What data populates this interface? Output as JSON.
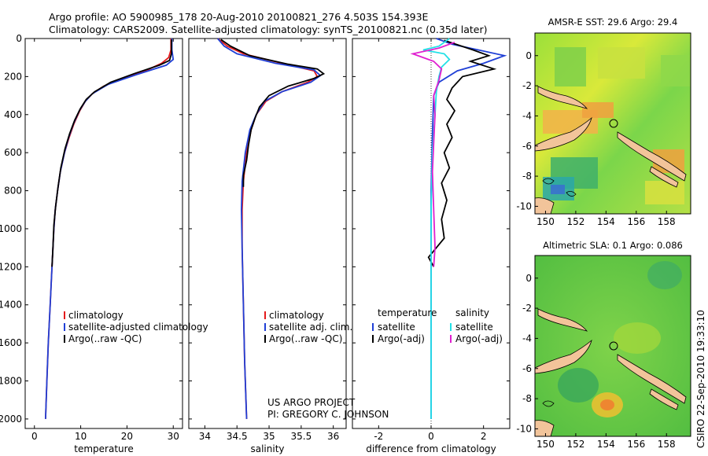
{
  "header": {
    "line1": "Argo profile: AO 5900985_178 20-Aug-2010 20100821_276 4.503S 154.393E",
    "line2": "Climatology: CARS2009. Satellite-adjusted climatology: synTS_20100821.nc (0.35d later)"
  },
  "credits": {
    "project": "US ARGO PROJECT",
    "pi": "PI: GREGORY C. JOHNSON",
    "stamp": "CSIRO 22-Sep-2010 19:33:10"
  },
  "colors": {
    "climatology": "#e41a1c",
    "satellite": "#1f3fd6",
    "argo": "#000000",
    "salinity_satellite": "#22e0e6",
    "salinity_argo": "#e020d0",
    "land": "#f2c49a"
  },
  "chart_data": [
    {
      "type": "line",
      "name": "temperature-profile",
      "xlabel": "temperature",
      "ylabel": "",
      "xlim": [
        -2,
        32
      ],
      "ylim": [
        2050,
        0
      ],
      "xticks": [
        "0",
        "10",
        "20",
        "30"
      ],
      "yticks": [
        "0",
        "200",
        "400",
        "600",
        "800",
        "1000",
        "1200",
        "1400",
        "1600",
        "1800",
        "2000"
      ],
      "legend": [
        "climatology",
        "satellite-adjusted climatology",
        "Argo(..raw -QC)"
      ],
      "series": [
        {
          "name": "climatology",
          "color": "#e41a1c",
          "points": [
            [
              29.5,
              0
            ],
            [
              29.5,
              60
            ],
            [
              29.0,
              100
            ],
            [
              27.5,
              130
            ],
            [
              24.0,
              170
            ],
            [
              19.0,
              210
            ],
            [
              15.0,
              250
            ],
            [
              12.5,
              290
            ],
            [
              11.0,
              330
            ],
            [
              9.8,
              380
            ],
            [
              8.5,
              450
            ],
            [
              7.5,
              520
            ],
            [
              6.5,
              600
            ],
            [
              5.6,
              700
            ],
            [
              5.0,
              800
            ],
            [
              4.5,
              900
            ],
            [
              4.2,
              1000
            ],
            [
              3.8,
              1200
            ],
            [
              3.4,
              1400
            ],
            [
              3.0,
              1600
            ],
            [
              2.7,
              1800
            ],
            [
              2.4,
              2000
            ]
          ]
        },
        {
          "name": "satellite-adjusted climatology",
          "color": "#1f3fd6",
          "points": [
            [
              29.7,
              0
            ],
            [
              29.7,
              60
            ],
            [
              30.0,
              110
            ],
            [
              28.5,
              140
            ],
            [
              22.0,
              190
            ],
            [
              16.0,
              240
            ],
            [
              12.5,
              290
            ],
            [
              11.0,
              330
            ],
            [
              9.7,
              380
            ],
            [
              8.4,
              450
            ],
            [
              7.4,
              520
            ],
            [
              6.5,
              600
            ],
            [
              5.6,
              700
            ],
            [
              5.0,
              800
            ],
            [
              4.5,
              900
            ],
            [
              4.2,
              1000
            ],
            [
              3.8,
              1200
            ],
            [
              3.4,
              1400
            ],
            [
              3.0,
              1600
            ],
            [
              2.7,
              1800
            ],
            [
              2.4,
              2000
            ]
          ]
        },
        {
          "name": "Argo(..raw -QC)",
          "color": "#000000",
          "points": [
            [
              29.6,
              5
            ],
            [
              29.6,
              80
            ],
            [
              29.2,
              115
            ],
            [
              27.0,
              140
            ],
            [
              21.5,
              185
            ],
            [
              16.5,
              230
            ],
            [
              13.0,
              280
            ],
            [
              11.2,
              320
            ],
            [
              9.9,
              370
            ],
            [
              8.7,
              430
            ],
            [
              7.6,
              500
            ],
            [
              6.6,
              580
            ],
            [
              5.7,
              680
            ],
            [
              5.1,
              780
            ],
            [
              4.6,
              880
            ],
            [
              4.2,
              980
            ],
            [
              4.0,
              1100
            ],
            [
              3.8,
              1200
            ]
          ]
        }
      ]
    },
    {
      "type": "line",
      "name": "salinity-profile",
      "xlabel": "salinity",
      "ylabel": "",
      "xlim": [
        33.75,
        36.2
      ],
      "ylim": [
        2050,
        0
      ],
      "xticks": [
        "34",
        "34.5",
        "35",
        "35.5",
        "36"
      ],
      "legend": [
        "climatology",
        "satellite adj. clim.",
        "Argo(..raw -QC)"
      ],
      "series": [
        {
          "name": "climatology",
          "color": "#e41a1c",
          "points": [
            [
              34.2,
              0
            ],
            [
              34.35,
              40
            ],
            [
              34.6,
              80
            ],
            [
              35.2,
              130
            ],
            [
              35.7,
              170
            ],
            [
              35.75,
              200
            ],
            [
              35.6,
              230
            ],
            [
              35.2,
              280
            ],
            [
              34.95,
              330
            ],
            [
              34.8,
              400
            ],
            [
              34.72,
              480
            ],
            [
              34.65,
              600
            ],
            [
              34.6,
              750
            ],
            [
              34.58,
              900
            ],
            [
              34.58,
              1100
            ],
            [
              34.6,
              1400
            ],
            [
              34.62,
              1700
            ],
            [
              34.65,
              2000
            ]
          ]
        },
        {
          "name": "satellite adj. clim.",
          "color": "#1f3fd6",
          "points": [
            [
              34.2,
              0
            ],
            [
              34.3,
              40
            ],
            [
              34.5,
              80
            ],
            [
              35.1,
              130
            ],
            [
              35.7,
              165
            ],
            [
              35.8,
              195
            ],
            [
              35.65,
              230
            ],
            [
              35.2,
              280
            ],
            [
              34.93,
              330
            ],
            [
              34.8,
              400
            ],
            [
              34.7,
              480
            ],
            [
              34.63,
              600
            ],
            [
              34.58,
              750
            ],
            [
              34.57,
              900
            ],
            [
              34.58,
              1100
            ],
            [
              34.6,
              1400
            ],
            [
              34.62,
              1700
            ],
            [
              34.65,
              2000
            ]
          ]
        },
        {
          "name": "Argo(..raw -QC)",
          "color": "#000000",
          "points": [
            [
              34.25,
              5
            ],
            [
              34.4,
              40
            ],
            [
              34.7,
              90
            ],
            [
              35.3,
              135
            ],
            [
              35.75,
              160
            ],
            [
              35.85,
              185
            ],
            [
              35.7,
              210
            ],
            [
              35.3,
              250
            ],
            [
              35.0,
              300
            ],
            [
              34.85,
              360
            ],
            [
              34.78,
              420
            ],
            [
              34.72,
              480
            ],
            [
              34.68,
              560
            ],
            [
              34.65,
              640
            ],
            [
              34.6,
              720
            ],
            [
              34.6,
              780
            ]
          ]
        }
      ]
    },
    {
      "type": "line",
      "name": "difference-profile",
      "xlabel": "difference from climatology",
      "ylabel": "",
      "xlim": [
        -3,
        3
      ],
      "ylim": [
        2050,
        0
      ],
      "xticks": [
        "-2",
        "0",
        "2"
      ],
      "legend_groups": [
        {
          "title": "temperature",
          "entries": [
            "satellite",
            "Argo(-adj)"
          ]
        },
        {
          "title": "salinity",
          "entries": [
            "satellite",
            "Argo(-adj)"
          ]
        }
      ],
      "series": [
        {
          "name": "temperature satellite",
          "color": "#1f3fd6",
          "points": [
            [
              0.2,
              0
            ],
            [
              0.8,
              30
            ],
            [
              1.8,
              60
            ],
            [
              2.8,
              90
            ],
            [
              2.0,
              130
            ],
            [
              1.0,
              170
            ],
            [
              0.3,
              230
            ],
            [
              0.1,
              300
            ],
            [
              0.05,
              500
            ],
            [
              0.0,
              800
            ],
            [
              0.0,
              1100
            ],
            [
              0.0,
              1400
            ],
            [
              0.0,
              2000
            ]
          ]
        },
        {
          "name": "temperature Argo(-adj)",
          "color": "#000000",
          "points": [
            [
              0.5,
              10
            ],
            [
              1.6,
              60
            ],
            [
              2.2,
              90
            ],
            [
              1.5,
              120
            ],
            [
              2.4,
              160
            ],
            [
              1.2,
              200
            ],
            [
              0.8,
              260
            ],
            [
              0.6,
              320
            ],
            [
              0.9,
              380
            ],
            [
              0.6,
              450
            ],
            [
              0.8,
              520
            ],
            [
              0.5,
              600
            ],
            [
              0.7,
              680
            ],
            [
              0.4,
              760
            ],
            [
              0.6,
              850
            ],
            [
              0.4,
              950
            ],
            [
              0.5,
              1050
            ],
            [
              -0.1,
              1150
            ],
            [
              0.1,
              1200
            ]
          ]
        },
        {
          "name": "salinity satellite",
          "color": "#22e0e6",
          "points": [
            [
              0.7,
              0
            ],
            [
              0.3,
              40
            ],
            [
              -0.3,
              60
            ],
            [
              0.5,
              80
            ],
            [
              0.7,
              110
            ],
            [
              0.4,
              150
            ],
            [
              0.3,
              200
            ],
            [
              0.2,
              280
            ],
            [
              0.15,
              400
            ],
            [
              0.05,
              600
            ],
            [
              0.0,
              900
            ],
            [
              0.0,
              1300
            ],
            [
              0.0,
              2000
            ]
          ]
        },
        {
          "name": "salinity Argo(-adj)",
          "color": "#e020d0",
          "points": [
            [
              0.9,
              20
            ],
            [
              0.3,
              50
            ],
            [
              -0.7,
              80
            ],
            [
              0.1,
              120
            ],
            [
              0.4,
              160
            ],
            [
              0.3,
              220
            ],
            [
              0.1,
              300
            ],
            [
              0.15,
              400
            ],
            [
              0.1,
              550
            ],
            [
              0.05,
              700
            ],
            [
              0.1,
              900
            ],
            [
              0.15,
              1100
            ],
            [
              0.1,
              1200
            ]
          ]
        }
      ]
    },
    {
      "type": "heatmap",
      "name": "sst-map",
      "title": "AMSR-E SST: 29.6 Argo: 29.4",
      "xlim": [
        149.3,
        159.6
      ],
      "ylim": [
        -10.5,
        1.5
      ],
      "xticks": [
        "150",
        "152",
        "154",
        "156",
        "158"
      ],
      "yticks": [
        "0",
        "-2",
        "-4",
        "-6",
        "-8",
        "-10"
      ],
      "argo_position": [
        154.393,
        -4.503
      ]
    },
    {
      "type": "heatmap",
      "name": "sla-map",
      "title": "Altimetric SLA: 0.1 Argo: 0.086",
      "xlim": [
        149.3,
        159.6
      ],
      "ylim": [
        -10.5,
        1.5
      ],
      "xticks": [
        "150",
        "152",
        "154",
        "156",
        "158"
      ],
      "yticks": [
        "0",
        "-2",
        "-4",
        "-6",
        "-8",
        "-10"
      ],
      "argo_position": [
        154.393,
        -4.503
      ]
    }
  ]
}
